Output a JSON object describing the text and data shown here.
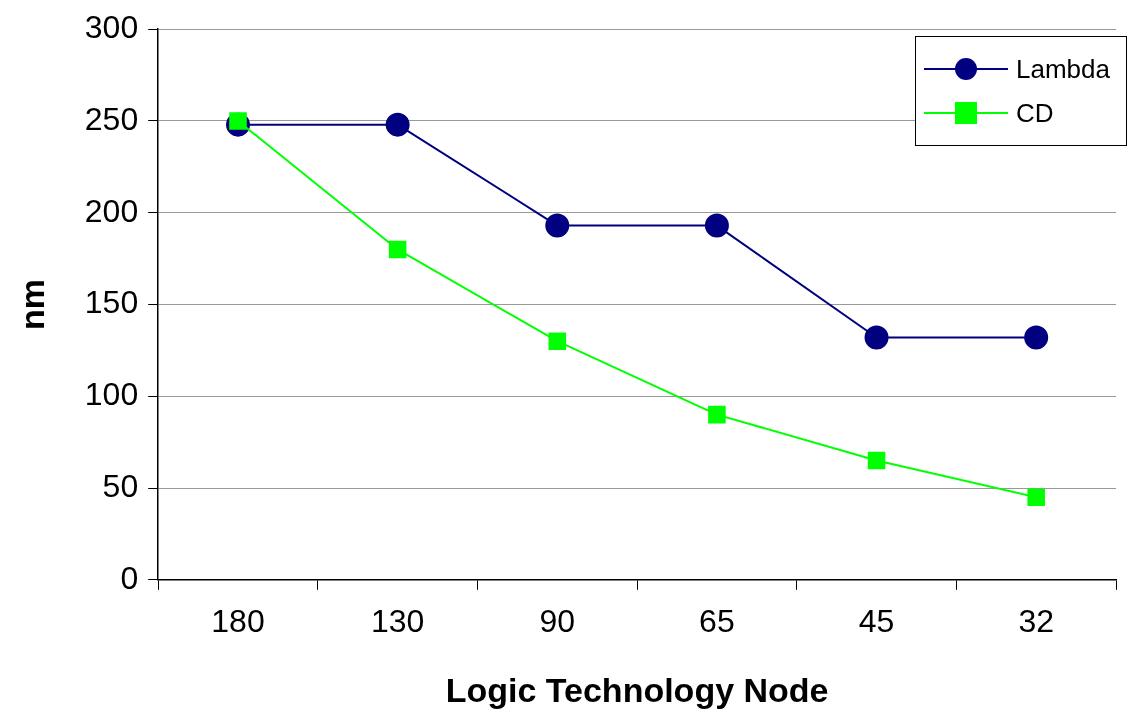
{
  "chart_data": {
    "type": "line",
    "xlabel": "Logic Technology Node",
    "ylabel": "nm",
    "categories": [
      "180",
      "130",
      "90",
      "65",
      "45",
      "32"
    ],
    "series": [
      {
        "name": "Lambda",
        "color": "#000080",
        "marker": "circle",
        "values": [
          248,
          248,
          193,
          193,
          132,
          132
        ]
      },
      {
        "name": "CD",
        "color": "#00ff00",
        "marker": "square",
        "values": [
          250,
          180,
          130,
          90,
          65,
          45
        ]
      }
    ],
    "ylim": [
      0,
      300
    ],
    "yticks": [
      0,
      50,
      100,
      150,
      200,
      250,
      300
    ],
    "grid": "y",
    "legend": "top right",
    "line_style": "solid"
  }
}
